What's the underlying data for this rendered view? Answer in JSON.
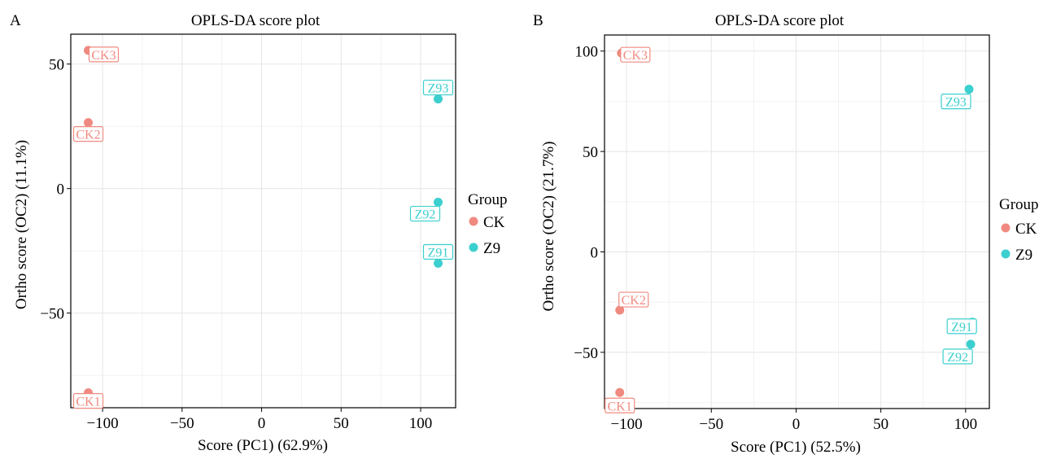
{
  "colors": {
    "CK": "#F08A80",
    "Z9": "#3CCFCF",
    "grid_major": "#e5e5e5",
    "grid_minor": "#f2f2f2",
    "axis": "#000000"
  },
  "legend": {
    "title": "Group",
    "items": [
      "CK",
      "Z9"
    ]
  },
  "chart_data": [
    {
      "type": "scatter",
      "panel_label": "A",
      "title": "OPLS-DA score plot",
      "xlabel": "Score (PC1) (62.9%)",
      "ylabel": "Ortho score (OC2) (11.1%)",
      "xlim": [
        -120,
        122
      ],
      "ylim": [
        -88,
        62
      ],
      "xticks": [
        -100,
        -50,
        0,
        50,
        100
      ],
      "xtick_labels": [
        "−100",
        "−50",
        "0",
        "50",
        "100"
      ],
      "yticks": [
        -50,
        0,
        50
      ],
      "ytick_labels": [
        "−50",
        "0",
        "50"
      ],
      "grid": true,
      "legend_position": "right",
      "points": [
        {
          "label": "CK3",
          "group": "CK",
          "x": -109,
          "y": 55.5
        },
        {
          "label": "CK2",
          "group": "CK",
          "x": -109,
          "y": 26.5
        },
        {
          "label": "CK1",
          "group": "CK",
          "x": -109,
          "y": -82
        },
        {
          "label": "Z93",
          "group": "Z9",
          "x": 111,
          "y": 36
        },
        {
          "label": "Z92",
          "group": "Z9",
          "x": 111,
          "y": -5.5
        },
        {
          "label": "Z91",
          "group": "Z9",
          "x": 111,
          "y": -30
        }
      ]
    },
    {
      "type": "scatter",
      "panel_label": "B",
      "title": "OPLS-DA score plot",
      "xlabel": "Score (PC1) (52.5%)",
      "ylabel": "Ortho score (OC2) (21.7%)",
      "xlim": [
        -113,
        114
      ],
      "ylim": [
        -78,
        108
      ],
      "xticks": [
        -100,
        -50,
        0,
        50,
        100
      ],
      "xtick_labels": [
        "−100",
        "−50",
        "0",
        "50",
        "100"
      ],
      "yticks": [
        -50,
        0,
        50,
        100
      ],
      "ytick_labels": [
        "−50",
        "0",
        "50",
        "100"
      ],
      "grid": true,
      "legend_position": "right",
      "points": [
        {
          "label": "CK3",
          "group": "CK",
          "x": -103,
          "y": 99
        },
        {
          "label": "CK2",
          "group": "CK",
          "x": -104,
          "y": -29
        },
        {
          "label": "CK1",
          "group": "CK",
          "x": -104,
          "y": -70
        },
        {
          "label": "Z93",
          "group": "Z9",
          "x": 102,
          "y": 81
        },
        {
          "label": "Z91",
          "group": "Z9",
          "x": 104,
          "y": -35
        },
        {
          "label": "Z92",
          "group": "Z9",
          "x": 103,
          "y": -46
        }
      ]
    }
  ]
}
